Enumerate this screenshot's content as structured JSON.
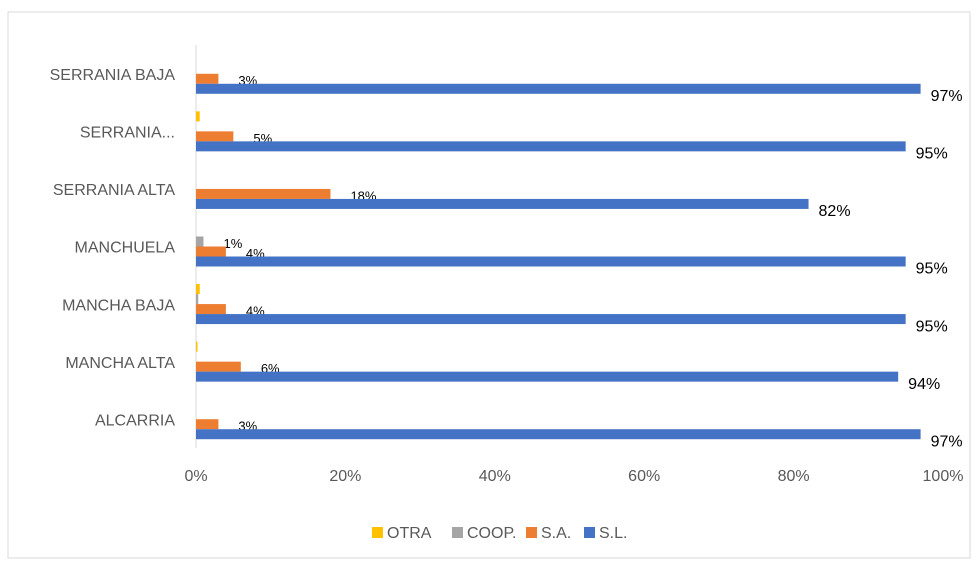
{
  "chart_data": {
    "type": "hbar",
    "categories": [
      "SERRANIA BAJA",
      "SERRANIA...",
      "SERRANIA ALTA",
      "MANCHUELA",
      "MANCHA BAJA",
      "MANCHA ALTA",
      "ALCARRIA"
    ],
    "series": [
      {
        "name": "OTRA",
        "color": "#ffc000",
        "values": [
          0,
          0.5,
          0,
          0,
          0.5,
          0.2,
          0
        ],
        "value_labels": [
          null,
          null,
          null,
          null,
          null,
          null,
          null
        ]
      },
      {
        "name": "COOP.",
        "color": "#a5a5a5",
        "values": [
          0,
          0,
          0,
          1,
          0.3,
          0,
          0
        ],
        "value_labels": [
          null,
          null,
          null,
          "1%",
          null,
          null,
          null
        ]
      },
      {
        "name": "S.A.",
        "color": "#ed7d31",
        "values": [
          3,
          5,
          18,
          4,
          4,
          6,
          3
        ],
        "value_labels": [
          "3%",
          "5%",
          "18%",
          "4%",
          "4%",
          "6%",
          "3%"
        ]
      },
      {
        "name": "S.L.",
        "color": "#4472c4",
        "values": [
          97,
          95,
          82,
          95,
          95,
          94,
          97
        ],
        "value_labels": [
          "97%",
          "95%",
          "82%",
          "95%",
          "95%",
          "94%",
          "97%"
        ]
      }
    ],
    "xlim": [
      0,
      100
    ],
    "xticks": [
      {
        "value": 0,
        "label": "0%"
      },
      {
        "value": 20,
        "label": "20%"
      },
      {
        "value": 40,
        "label": "40%"
      },
      {
        "value": 60,
        "label": "60%"
      },
      {
        "value": 80,
        "label": "80%"
      },
      {
        "value": 100,
        "label": "100%"
      }
    ],
    "legend": "bottom"
  }
}
